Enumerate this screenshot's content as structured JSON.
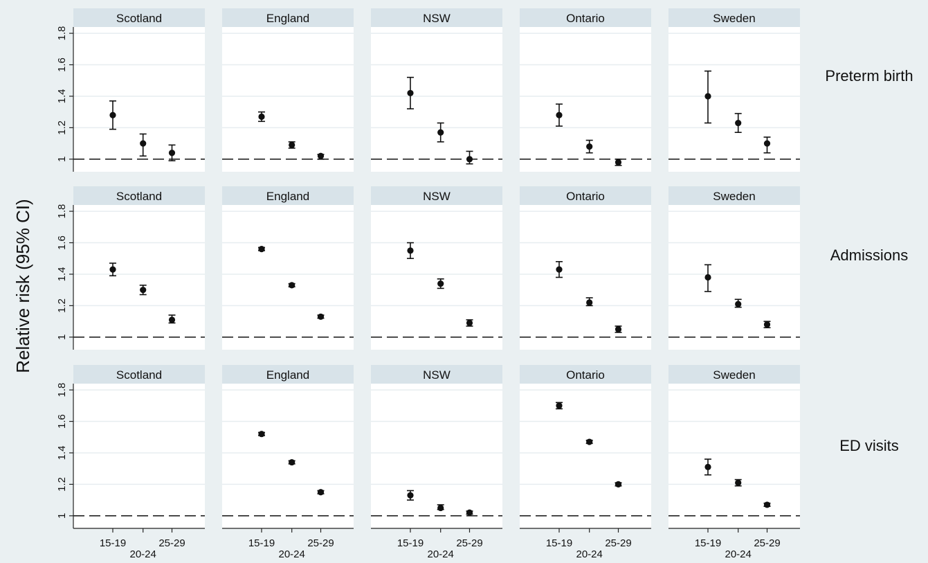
{
  "chart_data": {
    "type": "scatter",
    "ylabel": "Relative risk (95% CI)",
    "xlabel": "",
    "categories": [
      "15-19",
      "20-24",
      "25-29"
    ],
    "countries": [
      "Scotland",
      "England",
      "NSW",
      "Ontario",
      "Sweden"
    ],
    "ylim": [
      0.92,
      1.84
    ],
    "yticks": [
      1,
      1.2,
      1.4,
      1.6,
      1.8
    ],
    "ytick_labels": [
      "1",
      "1.2",
      "1.4",
      "1.6",
      "1.8"
    ],
    "reference_line": 1,
    "grid": true,
    "rows": [
      {
        "label": "Preterm birth",
        "panels": [
          {
            "country": "Scotland",
            "estimate": [
              1.28,
              1.1,
              1.04
            ],
            "lower": [
              1.19,
              1.02,
              0.99
            ],
            "upper": [
              1.37,
              1.16,
              1.09
            ]
          },
          {
            "country": "England",
            "estimate": [
              1.27,
              1.09,
              1.02
            ],
            "lower": [
              1.24,
              1.07,
              1.0
            ],
            "upper": [
              1.3,
              1.11,
              1.03
            ]
          },
          {
            "country": "NSW",
            "estimate": [
              1.42,
              1.17,
              1.0
            ],
            "lower": [
              1.32,
              1.11,
              0.97
            ],
            "upper": [
              1.52,
              1.23,
              1.05
            ]
          },
          {
            "country": "Ontario",
            "estimate": [
              1.28,
              1.08,
              0.98
            ],
            "lower": [
              1.21,
              1.04,
              0.96
            ],
            "upper": [
              1.35,
              1.12,
              1.0
            ]
          },
          {
            "country": "Sweden",
            "estimate": [
              1.4,
              1.23,
              1.1
            ],
            "lower": [
              1.23,
              1.17,
              1.04
            ],
            "upper": [
              1.56,
              1.29,
              1.14
            ]
          }
        ]
      },
      {
        "label": "Admissions",
        "panels": [
          {
            "country": "Scotland",
            "estimate": [
              1.43,
              1.3,
              1.11
            ],
            "lower": [
              1.39,
              1.27,
              1.09
            ],
            "upper": [
              1.47,
              1.33,
              1.14
            ]
          },
          {
            "country": "England",
            "estimate": [
              1.56,
              1.33,
              1.13
            ],
            "lower": [
              1.55,
              1.32,
              1.12
            ],
            "upper": [
              1.57,
              1.34,
              1.14
            ]
          },
          {
            "country": "NSW",
            "estimate": [
              1.55,
              1.34,
              1.09
            ],
            "lower": [
              1.5,
              1.31,
              1.07
            ],
            "upper": [
              1.6,
              1.37,
              1.11
            ]
          },
          {
            "country": "Ontario",
            "estimate": [
              1.43,
              1.22,
              1.05
            ],
            "lower": [
              1.38,
              1.2,
              1.03
            ],
            "upper": [
              1.48,
              1.25,
              1.07
            ]
          },
          {
            "country": "Sweden",
            "estimate": [
              1.38,
              1.21,
              1.08
            ],
            "lower": [
              1.29,
              1.19,
              1.06
            ],
            "upper": [
              1.46,
              1.24,
              1.1
            ]
          }
        ]
      },
      {
        "label": "ED visits",
        "panels": [
          {
            "country": "Scotland",
            "estimate": [],
            "lower": [],
            "upper": []
          },
          {
            "country": "England",
            "estimate": [
              1.52,
              1.34,
              1.15
            ],
            "lower": [
              1.51,
              1.33,
              1.14
            ],
            "upper": [
              1.53,
              1.35,
              1.16
            ]
          },
          {
            "country": "NSW",
            "estimate": [
              1.13,
              1.05,
              1.02
            ],
            "lower": [
              1.1,
              1.04,
              1.01
            ],
            "upper": [
              1.16,
              1.07,
              1.03
            ]
          },
          {
            "country": "Ontario",
            "estimate": [
              1.7,
              1.47,
              1.2
            ],
            "lower": [
              1.68,
              1.46,
              1.19
            ],
            "upper": [
              1.72,
              1.48,
              1.21
            ]
          },
          {
            "country": "Sweden",
            "estimate": [
              1.31,
              1.21,
              1.07
            ],
            "lower": [
              1.26,
              1.19,
              1.06
            ],
            "upper": [
              1.36,
              1.23,
              1.08
            ]
          }
        ]
      }
    ]
  }
}
